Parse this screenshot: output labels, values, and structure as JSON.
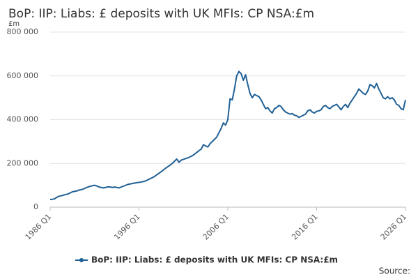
{
  "chart_data": {
    "type": "line",
    "title": "BoP: IIP: Liabs: £ deposits with UK MFIs: CP NSA:£m",
    "y_unit": "£m",
    "source": "Source:",
    "categories": [
      "1986 Q1",
      null,
      null,
      null,
      null,
      null,
      null,
      null,
      null,
      null,
      null,
      null,
      null,
      null,
      null,
      null,
      null,
      null,
      null,
      null,
      null,
      null,
      null,
      null,
      null,
      null,
      null,
      null,
      null,
      null,
      null,
      null,
      null,
      null,
      null,
      null,
      null,
      null,
      null,
      null,
      "1996 Q1",
      null,
      null,
      null,
      null,
      null,
      null,
      null,
      null,
      null,
      null,
      null,
      null,
      null,
      null,
      null,
      null,
      null,
      null,
      null,
      null,
      null,
      null,
      null,
      null,
      null,
      null,
      null,
      null,
      null,
      null,
      null,
      null,
      null,
      null,
      null,
      null,
      null,
      null,
      null,
      "2006 Q1",
      null,
      null,
      null,
      null,
      null,
      null,
      null,
      null,
      null,
      null,
      null,
      null,
      null,
      null,
      null,
      null,
      null,
      null,
      null,
      null,
      null,
      null,
      null,
      null,
      null,
      null,
      null,
      null,
      null,
      null,
      null,
      null,
      null,
      null,
      null,
      null,
      null,
      null,
      null,
      "2016 Q1",
      null,
      null,
      null,
      null,
      null,
      null,
      null,
      null,
      null,
      null,
      null,
      null,
      null,
      null,
      null,
      null,
      null,
      null,
      null,
      null,
      null,
      null,
      null,
      null,
      null,
      null,
      null,
      null,
      null,
      null,
      null,
      null,
      null,
      null,
      null,
      null,
      null,
      null,
      null,
      "2026 Q1"
    ],
    "series": [
      {
        "name": "BoP: IIP: Liabs: £ deposits with UK MFIs: CP NSA:£m",
        "color": "#206095",
        "values": [
          35000,
          36000,
          38000,
          45000,
          50000,
          52000,
          55000,
          58000,
          60000,
          65000,
          70000,
          72000,
          74000,
          78000,
          80000,
          83000,
          88000,
          92000,
          95000,
          98000,
          100000,
          97000,
          92000,
          90000,
          88000,
          90000,
          93000,
          92000,
          90000,
          92000,
          90000,
          88000,
          92000,
          96000,
          100000,
          104000,
          106000,
          108000,
          110000,
          112000,
          113000,
          115000,
          117000,
          120000,
          125000,
          130000,
          135000,
          140000,
          148000,
          155000,
          162000,
          170000,
          178000,
          185000,
          192000,
          200000,
          210000,
          220000,
          205000,
          215000,
          218000,
          222000,
          225000,
          230000,
          235000,
          242000,
          250000,
          258000,
          265000,
          285000,
          280000,
          275000,
          290000,
          300000,
          310000,
          320000,
          340000,
          360000,
          385000,
          375000,
          400000,
          495000,
          490000,
          540000,
          600000,
          620000,
          610000,
          580000,
          605000,
          560000,
          520000,
          500000,
          515000,
          510000,
          505000,
          490000,
          470000,
          450000,
          455000,
          440000,
          430000,
          450000,
          455000,
          465000,
          460000,
          445000,
          435000,
          430000,
          425000,
          428000,
          420000,
          418000,
          410000,
          415000,
          420000,
          425000,
          440000,
          445000,
          435000,
          430000,
          438000,
          440000,
          445000,
          460000,
          465000,
          455000,
          450000,
          460000,
          465000,
          470000,
          458000,
          445000,
          460000,
          470000,
          455000,
          475000,
          490000,
          505000,
          520000,
          540000,
          530000,
          520000,
          515000,
          530000,
          560000,
          555000,
          545000,
          565000,
          540000,
          520000,
          500000,
          495000,
          505000,
          495000,
          500000,
          490000,
          470000,
          465000,
          450000,
          445000,
          490000
        ]
      }
    ],
    "ylim": [
      0,
      800000
    ],
    "yticks": [
      0,
      {
        "value": 200000,
        "label": "200 000"
      },
      {
        "value": 400000,
        "label": "400 000"
      },
      {
        "value": 600000,
        "label": "600 000"
      },
      {
        "value": 800000,
        "label": "800 000"
      }
    ],
    "grid": true
  }
}
